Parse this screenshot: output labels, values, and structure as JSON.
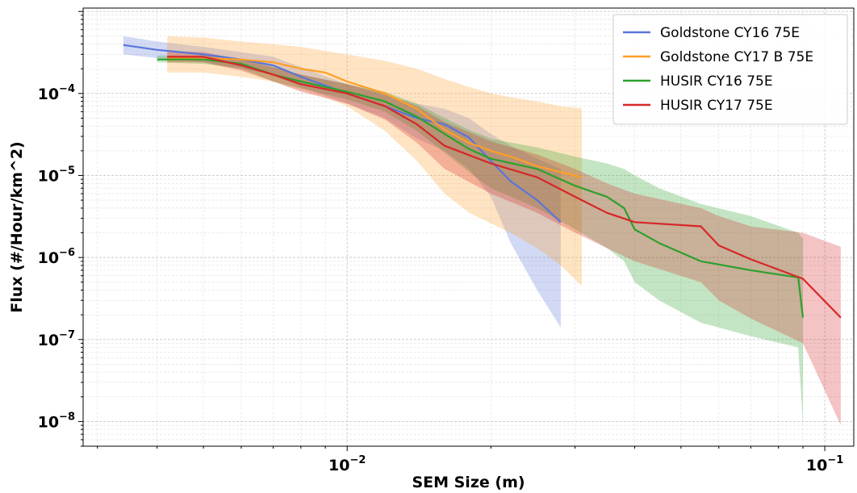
{
  "chart_data": {
    "type": "line",
    "title": "",
    "xlabel": "SEM Size (m)",
    "ylabel": "Flux (#/Hour/km^2)",
    "xscale": "log",
    "yscale": "log",
    "xlim": [
      0.0028,
      0.115
    ],
    "ylim": [
      5e-09,
      0.0011
    ],
    "grid": true,
    "legend_position": "top-right",
    "x_ticks": [
      {
        "value": 0.01,
        "base": "10",
        "exp": "−2"
      },
      {
        "value": 0.1,
        "base": "10",
        "exp": "−1"
      }
    ],
    "y_ticks": [
      {
        "value": 1e-08,
        "base": "10",
        "exp": "−8"
      },
      {
        "value": 1e-07,
        "base": "10",
        "exp": "−7"
      },
      {
        "value": 1e-06,
        "base": "10",
        "exp": "−6"
      },
      {
        "value": 1e-05,
        "base": "10",
        "exp": "−5"
      },
      {
        "value": 0.0001,
        "base": "10",
        "exp": "−4"
      }
    ],
    "series": [
      {
        "name": "Goldstone CY16 75E",
        "color": "#5975d9",
        "x": [
          0.0034,
          0.004,
          0.005,
          0.006,
          0.007,
          0.008,
          0.01,
          0.012,
          0.014,
          0.016,
          0.018,
          0.02,
          0.022,
          0.025,
          0.028
        ],
        "y": [
          0.00039,
          0.00034,
          0.0003,
          0.00026,
          0.00022,
          0.00016,
          0.0001,
          7e-05,
          5e-05,
          4.2e-05,
          2.9e-05,
          1.5e-05,
          8.5e-06,
          5e-06,
          2.7e-06
        ],
        "lower": [
          0.0003,
          0.00027,
          0.00024,
          0.0002,
          0.00017,
          0.00012,
          7.5e-05,
          5e-05,
          2.8e-05,
          2e-05,
          1.2e-05,
          5.5e-06,
          1.5e-06,
          4e-07,
          1.4e-07
        ],
        "upper": [
          0.0005,
          0.00043,
          0.00037,
          0.00032,
          0.00028,
          0.00021,
          0.00013,
          9.5e-05,
          7.5e-05,
          6.5e-05,
          5e-05,
          3.2e-05,
          2.3e-05,
          1.6e-05,
          1.2e-05
        ]
      },
      {
        "name": "Goldstone CY17 B 75E",
        "color": "#ff9e27",
        "x": [
          0.0042,
          0.005,
          0.006,
          0.007,
          0.008,
          0.009,
          0.01,
          0.012,
          0.014,
          0.016,
          0.018,
          0.02,
          0.022,
          0.025,
          0.028,
          0.031
        ],
        "y": [
          0.00027,
          0.00027,
          0.00026,
          0.00024,
          0.0002,
          0.00018,
          0.00014,
          0.0001,
          6.5e-05,
          3.6e-05,
          2.5e-05,
          2e-05,
          1.7e-05,
          1.3e-05,
          1.1e-05,
          9.5e-06
        ],
        "lower": [
          0.00018,
          0.00018,
          0.00016,
          0.00014,
          0.00011,
          9e-05,
          7e-05,
          3.5e-05,
          1.5e-05,
          6e-06,
          3.5e-06,
          2.6e-06,
          2e-06,
          1.3e-06,
          8e-07,
          4.5e-07
        ],
        "upper": [
          0.0005,
          0.00048,
          0.00043,
          0.0004,
          0.00037,
          0.00033,
          0.0003,
          0.00025,
          0.0002,
          0.00015,
          0.00012,
          0.0001,
          9e-05,
          8e-05,
          7e-05,
          6.6e-05
        ]
      },
      {
        "name": "HUSIR CY16 75E",
        "color": "#2ca02c",
        "x": [
          0.004,
          0.005,
          0.006,
          0.007,
          0.008,
          0.01,
          0.012,
          0.014,
          0.016,
          0.018,
          0.02,
          0.025,
          0.03,
          0.035,
          0.038,
          0.04,
          0.045,
          0.055,
          0.07,
          0.088,
          0.09
        ],
        "y": [
          0.00026,
          0.00026,
          0.00023,
          0.00017,
          0.00014,
          0.000105,
          8e-05,
          5.2e-05,
          3.2e-05,
          2.1e-05,
          1.6e-05,
          1.2e-05,
          7.5e-06,
          5.5e-06,
          4e-06,
          2.2e-06,
          1.5e-06,
          9e-07,
          7e-07,
          5.7e-07,
          1.85e-07
        ],
        "lower": [
          0.00024,
          0.00023,
          0.0002,
          0.00014,
          0.000115,
          8.5e-05,
          6e-05,
          3.5e-05,
          1.9e-05,
          1.1e-05,
          7e-06,
          4e-06,
          2.2e-06,
          1.3e-06,
          9e-07,
          5e-07,
          3e-07,
          1.6e-07,
          1.1e-07,
          8e-08,
          9e-09
        ],
        "upper": [
          0.00029,
          0.00029,
          0.00026,
          0.00021,
          0.00017,
          0.00013,
          0.000105,
          7.5e-05,
          5e-05,
          3.6e-05,
          2.8e-05,
          2.2e-05,
          1.7e-05,
          1.4e-05,
          1.2e-05,
          1e-05,
          7e-06,
          4.5e-06,
          3.2e-06,
          2e-06,
          1.7e-06
        ]
      },
      {
        "name": "HUSIR CY17 75E",
        "color": "#d62728",
        "x": [
          0.0042,
          0.005,
          0.006,
          0.007,
          0.008,
          0.01,
          0.012,
          0.014,
          0.016,
          0.02,
          0.025,
          0.03,
          0.035,
          0.04,
          0.055,
          0.06,
          0.07,
          0.09,
          0.108
        ],
        "y": [
          0.00028,
          0.00028,
          0.00022,
          0.00017,
          0.00013,
          0.0001,
          7e-05,
          4.2e-05,
          2.3e-05,
          1.4e-05,
          9.5e-06,
          5.5e-06,
          3.5e-06,
          2.7e-06,
          2.4e-06,
          1.4e-06,
          9.5e-07,
          5.5e-07,
          1.85e-07
        ],
        "lower": [
          0.00024,
          0.00024,
          0.00019,
          0.00014,
          0.000105,
          7.5e-05,
          4.8e-05,
          2.5e-05,
          1.2e-05,
          6e-06,
          3.5e-06,
          2e-06,
          1.3e-06,
          9e-07,
          5e-07,
          3e-07,
          1.8e-07,
          9e-08,
          9e-09
        ],
        "upper": [
          0.00033,
          0.00032,
          0.00026,
          0.00021,
          0.00017,
          0.00013,
          0.0001,
          7e-05,
          4.5e-05,
          2.6e-05,
          1.8e-05,
          1.2e-05,
          8e-06,
          6e-06,
          4e-06,
          3.2e-06,
          2.4e-06,
          2e-06,
          1.35e-06
        ]
      }
    ]
  }
}
